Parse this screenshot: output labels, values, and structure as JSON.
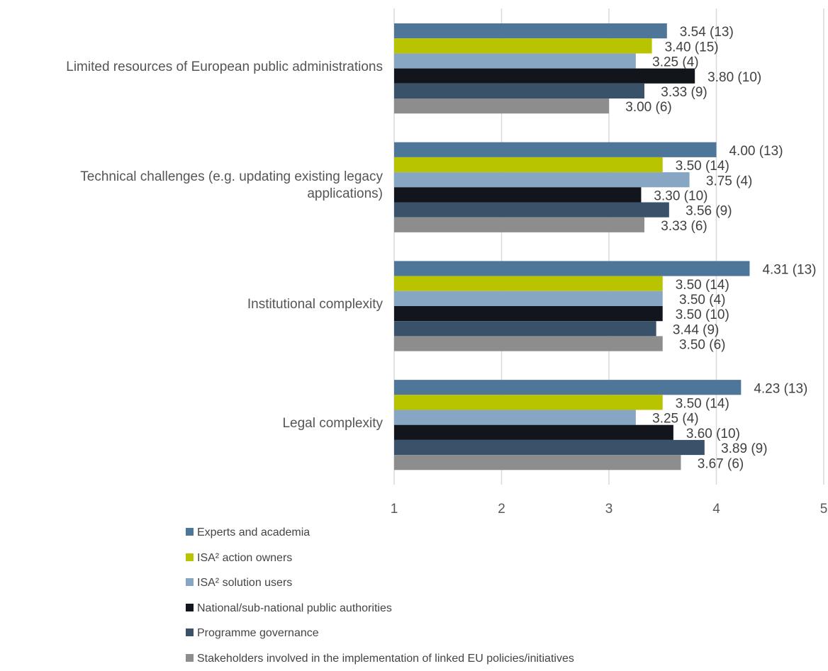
{
  "chart_data": {
    "type": "bar",
    "orientation": "horizontal",
    "categories": [
      "Limited resources of European public administrations",
      "Technical challenges (e.g. updating existing legacy applications)",
      "Institutional complexity",
      "Legal complexity"
    ],
    "category_lines": [
      [
        "Limited resources of European public administrations"
      ],
      [
        "Technical challenges (e.g. updating existing legacy",
        "applications)"
      ],
      [
        "Institutional complexity"
      ],
      [
        "Legal complexity"
      ]
    ],
    "series": [
      {
        "name": "Experts and academia",
        "color": "#4e7699",
        "values": [
          3.54,
          4.0,
          4.31,
          4.23
        ],
        "labels": [
          "3.54 (13)",
          "4.00 (13)",
          "4.31 (13)",
          "4.23 (13)"
        ]
      },
      {
        "name": "ISA² action owners",
        "color": "#b8c400",
        "values": [
          3.4,
          3.5,
          3.5,
          3.5
        ],
        "labels": [
          "3.40 (15)",
          "3.50 (14)",
          "3.50 (14)",
          "3.50 (14)"
        ]
      },
      {
        "name": "ISA² solution users",
        "color": "#87a6c4",
        "values": [
          3.25,
          3.75,
          3.5,
          3.25
        ],
        "labels": [
          "3.25 (4)",
          "3.75 (4)",
          "3.50 (4)",
          "3.25 (4)"
        ]
      },
      {
        "name": "National/sub-national public authorities",
        "color": "#12161c",
        "values": [
          3.8,
          3.3,
          3.5,
          3.6
        ],
        "labels": [
          "3.80 (10)",
          "3.30 (10)",
          "3.50 (10)",
          "3.60 (10)"
        ]
      },
      {
        "name": "Programme governance",
        "color": "#3a516a",
        "values": [
          3.33,
          3.56,
          3.44,
          3.89
        ],
        "labels": [
          "3.33 (9)",
          "3.56 (9)",
          "3.44 (9)",
          "3.89 (9)"
        ]
      },
      {
        "name": "Stakeholders involved in the implementation of linked EU policies/initiatives",
        "color": "#8d8d8d",
        "values": [
          3.0,
          3.33,
          3.5,
          3.67
        ],
        "labels": [
          "3.00 (6)",
          "3.33 (6)",
          "3.50 (6)",
          "3.67 (6)"
        ]
      }
    ],
    "xlim": [
      1,
      5
    ],
    "x_ticks": [
      "1",
      "2",
      "3",
      "4",
      "5"
    ],
    "grid": true,
    "legend_position": "bottom-left",
    "title": "",
    "xlabel": "",
    "ylabel": ""
  }
}
